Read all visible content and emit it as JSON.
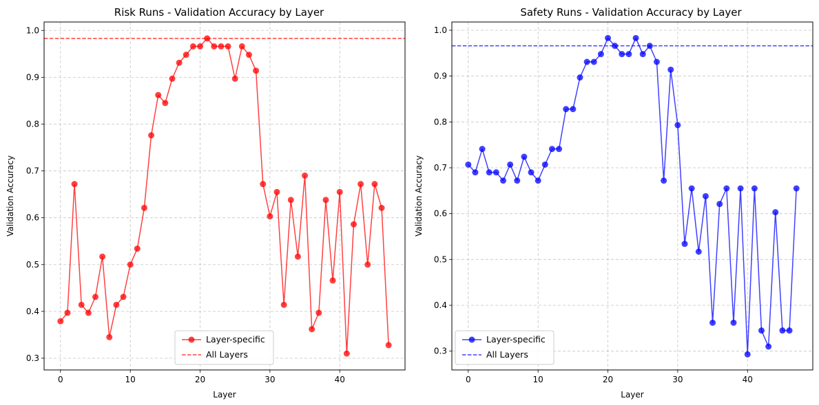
{
  "chart_data": [
    {
      "type": "line",
      "title": "Risk Runs - Validation Accuracy by Layer",
      "xlabel": "Layer",
      "ylabel": "Validation Accuracy",
      "xlim": [
        -2.35,
        49.35
      ],
      "ylim": [
        0.275,
        1.018
      ],
      "xticks": [
        0,
        10,
        20,
        30,
        40
      ],
      "yticks": [
        0.3,
        0.4,
        0.5,
        0.6,
        0.7,
        0.8,
        0.9,
        1.0
      ],
      "ytick_labels": [
        "0.3",
        "0.4",
        "0.5",
        "0.6",
        "0.7",
        "0.8",
        "0.9",
        "1.0"
      ],
      "grid": true,
      "legend_position": "lower center",
      "color": "#ff0000",
      "series": [
        {
          "name": "Layer-specific",
          "style": "solid-marker",
          "x": [
            0,
            1,
            2,
            3,
            4,
            5,
            6,
            7,
            8,
            9,
            10,
            11,
            12,
            13,
            14,
            15,
            16,
            17,
            18,
            19,
            20,
            21,
            22,
            23,
            24,
            25,
            26,
            27,
            28,
            29,
            30,
            31,
            32,
            33,
            34,
            35,
            36,
            37,
            38,
            39,
            40,
            41,
            42,
            43,
            44,
            45,
            46,
            47
          ],
          "values": [
            0.379,
            0.397,
            0.672,
            0.414,
            0.397,
            0.431,
            0.517,
            0.345,
            0.414,
            0.431,
            0.5,
            0.534,
            0.621,
            0.776,
            0.862,
            0.845,
            0.897,
            0.931,
            0.948,
            0.966,
            0.966,
            0.983,
            0.966,
            0.966,
            0.966,
            0.897,
            0.966,
            0.948,
            0.914,
            0.672,
            0.603,
            0.655,
            0.414,
            0.638,
            0.517,
            0.69,
            0.362,
            0.397,
            0.638,
            0.466,
            0.655,
            0.31,
            0.586,
            0.672,
            0.5,
            0.672,
            0.621,
            0.328
          ]
        },
        {
          "name": "All Layers",
          "style": "dashed-hline",
          "value": 0.983
        }
      ]
    },
    {
      "type": "line",
      "title": "Safety Runs - Validation Accuracy by Layer",
      "xlabel": "Layer",
      "ylabel": "Validation Accuracy",
      "xlim": [
        -2.35,
        49.35
      ],
      "ylim": [
        0.259,
        1.018
      ],
      "xticks": [
        0,
        10,
        20,
        30,
        40
      ],
      "yticks": [
        0.3,
        0.4,
        0.5,
        0.6,
        0.7,
        0.8,
        0.9,
        1.0
      ],
      "ytick_labels": [
        "0.3",
        "0.4",
        "0.5",
        "0.6",
        "0.7",
        "0.8",
        "0.9",
        "1.0"
      ],
      "grid": true,
      "legend_position": "lower left",
      "color": "#0000ff",
      "series": [
        {
          "name": "Layer-specific",
          "style": "solid-marker",
          "x": [
            0,
            1,
            2,
            3,
            4,
            5,
            6,
            7,
            8,
            9,
            10,
            11,
            12,
            13,
            14,
            15,
            16,
            17,
            18,
            19,
            20,
            21,
            22,
            23,
            24,
            25,
            26,
            27,
            28,
            29,
            30,
            31,
            32,
            33,
            34,
            35,
            36,
            37,
            38,
            39,
            40,
            41,
            42,
            43,
            44,
            45,
            46,
            47
          ],
          "values": [
            0.707,
            0.69,
            0.741,
            0.69,
            0.69,
            0.672,
            0.707,
            0.672,
            0.724,
            0.69,
            0.672,
            0.707,
            0.741,
            0.741,
            0.828,
            0.828,
            0.897,
            0.931,
            0.931,
            0.948,
            0.983,
            0.966,
            0.948,
            0.948,
            0.983,
            0.948,
            0.966,
            0.931,
            0.672,
            0.914,
            0.793,
            0.534,
            0.655,
            0.517,
            0.638,
            0.362,
            0.621,
            0.655,
            0.362,
            0.655,
            0.293,
            0.655,
            0.345,
            0.31,
            0.603,
            0.345,
            0.345,
            0.655
          ]
        },
        {
          "name": "All Layers",
          "style": "dashed-hline",
          "value": 0.966
        }
      ]
    }
  ]
}
